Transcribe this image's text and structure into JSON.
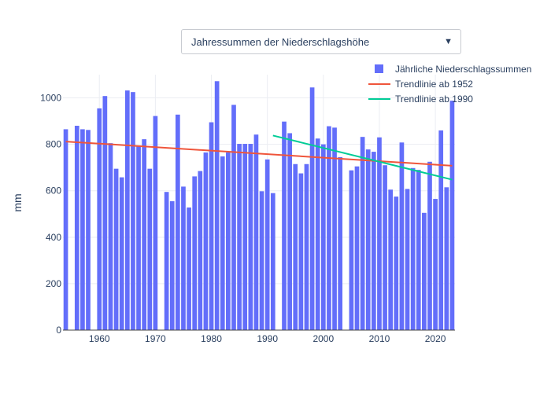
{
  "dropdown": {
    "selected": "Jahressummen der Niederschlagshöhe",
    "arrow_icon": "triangle-down-icon"
  },
  "colors": {
    "bars": "#636efa",
    "trend1952": "#ef553b",
    "trend1990": "#00cc96",
    "axis_text": "#2a3f5f",
    "grid": "#ebedf2"
  },
  "chart_data": {
    "type": "bar",
    "ylabel": "mm",
    "xlabel": "",
    "xlim": [
      1953.5,
      2023.5
    ],
    "ylim": [
      0,
      1100
    ],
    "xticks": [
      1960,
      1970,
      1980,
      1990,
      2000,
      2010,
      2020
    ],
    "yticks": [
      0,
      200,
      400,
      600,
      800,
      1000
    ],
    "grid": true,
    "legend_position": "top-right",
    "series": [
      {
        "name": "Jährliche Niederschlagssummen",
        "type": "bar",
        "x": [
          1954,
          1955,
          1956,
          1957,
          1958,
          1959,
          1960,
          1961,
          1962,
          1963,
          1964,
          1965,
          1966,
          1967,
          1968,
          1969,
          1970,
          1971,
          1972,
          1973,
          1974,
          1975,
          1976,
          1977,
          1978,
          1979,
          1980,
          1981,
          1982,
          1983,
          1984,
          1985,
          1986,
          1987,
          1988,
          1989,
          1990,
          1991,
          1992,
          1993,
          1994,
          1995,
          1996,
          1997,
          1998,
          1999,
          2000,
          2001,
          2002,
          2003,
          2004,
          2005,
          2006,
          2007,
          2008,
          2009,
          2010,
          2011,
          2012,
          2013,
          2014,
          2015,
          2016,
          2017,
          2018,
          2019,
          2020,
          2021,
          2022,
          2023
        ],
        "values": [
          865,
          null,
          880,
          865,
          862,
          null,
          955,
          1008,
          805,
          695,
          658,
          1032,
          1025,
          795,
          822,
          695,
          922,
          null,
          595,
          555,
          928,
          618,
          528,
          662,
          685,
          765,
          895,
          1072,
          748,
          765,
          970,
          802,
          802,
          802,
          842,
          598,
          735,
          590,
          null,
          898,
          848,
          715,
          675,
          715,
          1045,
          825,
          800,
          878,
          872,
          745,
          null,
          688,
          705,
          832,
          778,
          768,
          830,
          710,
          605,
          575,
          808,
          608,
          698,
          690,
          505,
          725,
          565,
          860,
          615,
          988
        ]
      },
      {
        "name": "Trendlinie ab 1952",
        "type": "line",
        "x": [
          1954,
          2023
        ],
        "values": [
          812,
          708
        ]
      },
      {
        "name": "Trendlinie ab 1990",
        "type": "line",
        "x": [
          1991,
          2023
        ],
        "values": [
          838,
          648
        ]
      }
    ]
  }
}
